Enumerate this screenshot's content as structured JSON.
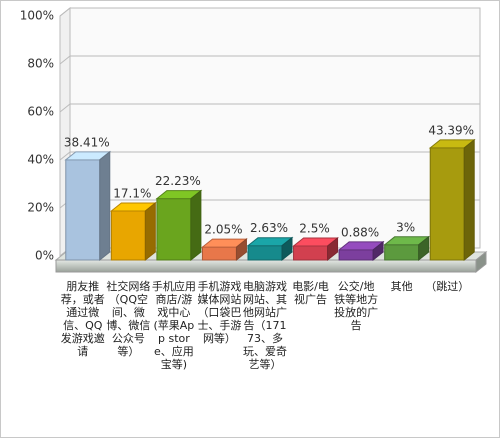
{
  "chart_data": {
    "type": "bar3d",
    "categories": [
      "朋友推荐，或者通过微信、QQ发游戏邀请",
      "社交网络（QQ空间、微博、微信公众号等）",
      "手机应用商店/游戏中心(苹果App store、应用宝等)",
      "手机游戏媒体网站（口袋巴士、手游网等）",
      "电脑游戏网站、其他网站广告（17173、多玩、爱奇艺等）",
      "电影/电视广告",
      "公交/地铁等地方投放的广告",
      "其他",
      "（跳过）"
    ],
    "values": [
      38.41,
      17.1,
      22.23,
      2.05,
      2.63,
      2.5,
      0.88,
      3,
      43.39
    ],
    "value_labels": [
      "38.41%",
      "17.1%",
      "22.23%",
      "2.05%",
      "2.63%",
      "2.5%",
      "0.88%",
      "3%",
      "43.39%"
    ],
    "colors": [
      "#a9c3df",
      "#e8a600",
      "#6aa51e",
      "#e8774a",
      "#168a8c",
      "#d2404f",
      "#7c3f9e",
      "#5c9a3e",
      "#a79b0e"
    ],
    "ylim": [
      0,
      100
    ],
    "yticks": [
      {
        "value": 0,
        "label": "0%"
      },
      {
        "value": 20,
        "label": "20%"
      },
      {
        "value": 40,
        "label": "40%"
      },
      {
        "value": 60,
        "label": "60%"
      },
      {
        "value": 80,
        "label": "80%"
      },
      {
        "value": 100,
        "label": "100%"
      }
    ],
    "grid": true
  }
}
